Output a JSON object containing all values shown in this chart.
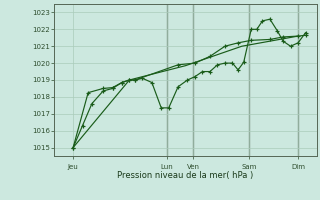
{
  "xlabel": "Pression niveau de la mer( hPa )",
  "bg_color": "#cce8df",
  "grid_color": "#aaccbb",
  "line_color": "#1a5c1a",
  "vline_color": "#556655",
  "ylim": [
    1014.5,
    1023.5
  ],
  "xlim": [
    0,
    7.0
  ],
  "yticks": [
    1015,
    1016,
    1017,
    1018,
    1019,
    1020,
    1021,
    1022,
    1023
  ],
  "xtick_pos": [
    0.5,
    3.0,
    3.7,
    5.2,
    6.5
  ],
  "xtick_lab": [
    "Jeu",
    "Lun",
    "Ven",
    "Sam",
    "Dim"
  ],
  "vlines": [
    3.0,
    3.7,
    5.2,
    6.5
  ],
  "series1_x": [
    0.5,
    0.75,
    1.0,
    1.3,
    1.55,
    1.8,
    2.0,
    2.15,
    2.35,
    2.6,
    2.85,
    3.05,
    3.3,
    3.55,
    3.75,
    3.95,
    4.15,
    4.35,
    4.55,
    4.75,
    4.9,
    5.05,
    5.25,
    5.4,
    5.55,
    5.75,
    5.95,
    6.1,
    6.3,
    6.5,
    6.7
  ],
  "series1_y": [
    1015.0,
    1016.3,
    1017.6,
    1018.35,
    1018.5,
    1018.85,
    1019.0,
    1019.0,
    1019.1,
    1018.85,
    1017.35,
    1017.35,
    1018.6,
    1019.0,
    1019.2,
    1019.5,
    1019.5,
    1019.9,
    1020.0,
    1020.0,
    1019.6,
    1020.05,
    1022.0,
    1022.0,
    1022.5,
    1022.6,
    1021.9,
    1021.3,
    1021.0,
    1021.2,
    1021.8
  ],
  "series2_x": [
    0.5,
    0.9,
    1.3,
    1.55,
    1.8,
    2.0,
    2.15,
    3.3,
    3.75,
    4.15,
    4.55,
    4.9,
    5.25,
    5.75,
    6.1,
    6.5,
    6.7
  ],
  "series2_y": [
    1015.0,
    1018.25,
    1018.5,
    1018.55,
    1018.85,
    1019.0,
    1019.0,
    1019.9,
    1020.0,
    1020.4,
    1021.0,
    1021.2,
    1021.35,
    1021.4,
    1021.55,
    1021.6,
    1021.65
  ],
  "series3_x": [
    0.5,
    2.0,
    3.5,
    5.0,
    6.5
  ],
  "series3_y": [
    1015.0,
    1019.0,
    1019.85,
    1021.0,
    1021.6
  ]
}
